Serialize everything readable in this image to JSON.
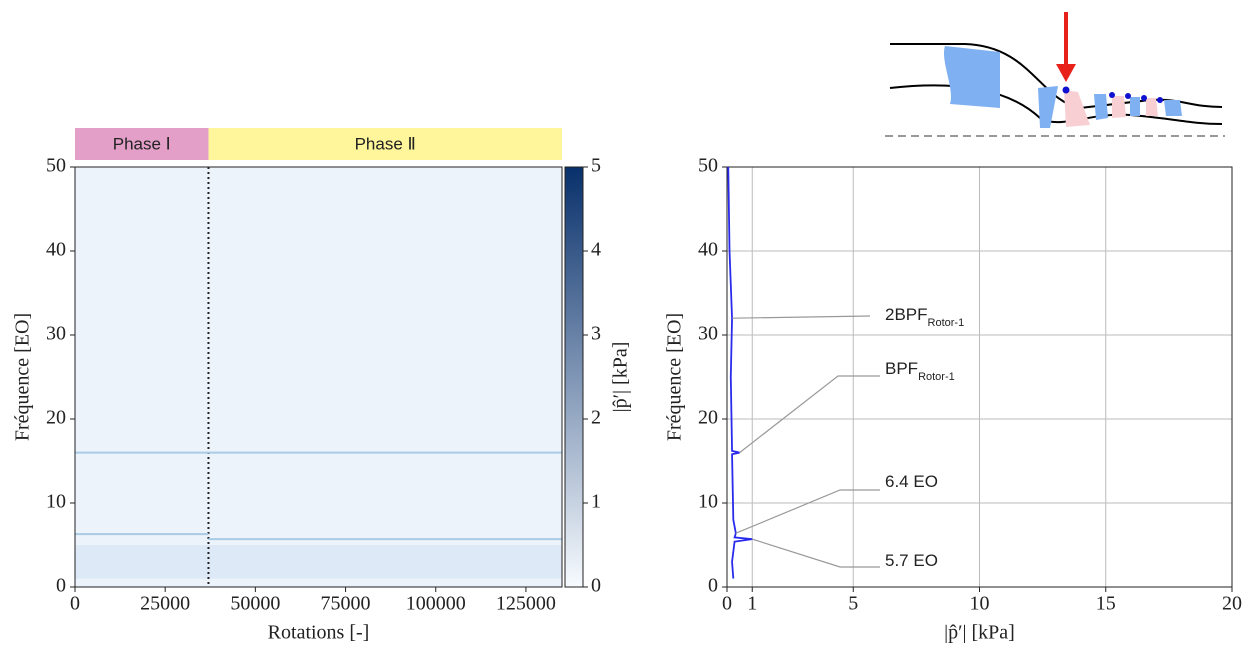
{
  "chart_data": [
    {
      "type": "spectrogram",
      "xlabel": "Rotations [-]",
      "ylabel": "Fréquence [EO]",
      "colorbar_label": "|p̂′| [kPa]",
      "xlim": [
        0,
        135000
      ],
      "xticks": [
        0,
        25000,
        50000,
        75000,
        100000,
        125000
      ],
      "ylim": [
        0,
        50
      ],
      "yticks": [
        0,
        10,
        20,
        30,
        40,
        50
      ],
      "clim": [
        0,
        5
      ],
      "cticks": [
        0,
        1,
        2,
        3,
        4,
        5
      ],
      "cmap": [
        "#f7fbff",
        "#08306b"
      ],
      "phases": [
        {
          "label": "Phase Ⅰ",
          "range": [
            0,
            37000
          ],
          "color": "#e39fc8"
        },
        {
          "label": "Phase Ⅱ",
          "range": [
            37000,
            135000
          ],
          "color": "#fff59a"
        }
      ],
      "lines": [
        {
          "y": 16,
          "x": [
            0,
            135000
          ]
        },
        {
          "y": 6.3,
          "x": [
            0,
            37000
          ]
        },
        {
          "y": 5.7,
          "x": [
            37000,
            135000
          ]
        }
      ],
      "line_color": "#a9cbe6"
    },
    {
      "type": "line",
      "xlabel": "|p̂′| [kPa]",
      "ylabel": "Fréquence [EO]",
      "xlim": [
        0,
        20
      ],
      "xticks": [
        0,
        1,
        5,
        10,
        15,
        20
      ],
      "ylim": [
        0,
        50
      ],
      "yticks": [
        0,
        10,
        20,
        30,
        40,
        50
      ],
      "grid": true,
      "series": [
        {
          "color": "#2a2aee",
          "x": [
            0.25,
            0.2,
            0.3,
            1.0,
            0.3,
            0.35,
            0.25,
            0.2,
            0.5,
            0.2,
            0.15,
            0.2,
            0.1,
            0.05
          ],
          "y": [
            1,
            3,
            5.4,
            5.7,
            5.9,
            6.4,
            8,
            15.8,
            16,
            16.2,
            25,
            32,
            40,
            50
          ]
        }
      ],
      "annotations": [
        {
          "text": "2BPF",
          "sub": "Rotor-1",
          "xy": [
            0.2,
            32
          ]
        },
        {
          "text": "BPF",
          "sub": "Rotor-1",
          "xy": [
            0.5,
            16
          ]
        },
        {
          "text": "6.4 EO",
          "xy": [
            0.35,
            6.4
          ]
        },
        {
          "text": "5.7 EO",
          "xy": [
            1.0,
            5.7
          ]
        }
      ]
    }
  ]
}
